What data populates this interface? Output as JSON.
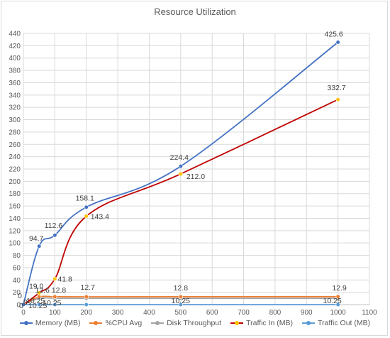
{
  "chart_data": {
    "type": "line",
    "title": "Resource Utilization",
    "xlabel": "",
    "ylabel": "",
    "xlim": [
      0,
      1100
    ],
    "ylim": [
      0,
      440
    ],
    "x_ticks": [
      "0",
      "100",
      "200",
      "300",
      "400",
      "500",
      "600",
      "700",
      "800",
      "900",
      "1000",
      "1100"
    ],
    "y_ticks": [
      "0",
      "20",
      "40",
      "60",
      "80",
      "100",
      "120",
      "140",
      "160",
      "180",
      "200",
      "220",
      "240",
      "260",
      "280",
      "300",
      "320",
      "340",
      "360",
      "380",
      "400",
      "420",
      "440"
    ],
    "grid": true,
    "legend_position": "bottom",
    "series": [
      {
        "name": "Memory (MB)",
        "color": "#4472c4",
        "x": [
          0,
          50,
          100,
          200,
          500,
          1000
        ],
        "y": [
          0,
          94.7,
          112.6,
          158.1,
          224.4,
          425.6
        ],
        "labels": [
          "0",
          "94.7",
          "112.6",
          "158.1",
          "224.4",
          "425.6"
        ]
      },
      {
        "name": "%CPU Avg",
        "color": "#ed7d31",
        "x": [
          0,
          50,
          100,
          200,
          500,
          1000
        ],
        "y": [
          0,
          12.6,
          12.8,
          12.7,
          12.8,
          12.9
        ],
        "labels": [
          "0",
          "",
          "12.6 12.8",
          "12.7",
          "12.8",
          "12.9"
        ]
      },
      {
        "name": "Disk Throughput",
        "color": "#a5a5a5",
        "x": [
          0,
          50,
          100,
          200,
          500,
          1000
        ],
        "y": [
          0,
          10.25,
          10.25,
          10.25,
          10.25,
          10.25
        ],
        "labels": [
          "",
          "10.25",
          "10.25",
          "",
          "10.25",
          "10.25"
        ]
      },
      {
        "name": "Traffic In (MB)",
        "color": "#c00000",
        "marker_color": "#ffc000",
        "x": [
          0,
          50,
          100,
          200,
          500,
          1000
        ],
        "y": [
          0,
          19.0,
          41.8,
          143.4,
          212.0,
          332.7
        ],
        "labels": [
          "",
          "19.0",
          "41.8",
          "143.4",
          "212.0",
          "332.7"
        ]
      },
      {
        "name": "Traffic Out (MB)",
        "color": "#5b9bd5",
        "x": [
          0,
          50,
          100,
          200,
          500,
          1000
        ],
        "y": [
          0,
          0,
          0,
          0,
          0,
          0
        ],
        "labels": [
          "0",
          "",
          "",
          "",
          "",
          ""
        ]
      }
    ],
    "extra_labels": [
      "10.25"
    ]
  }
}
